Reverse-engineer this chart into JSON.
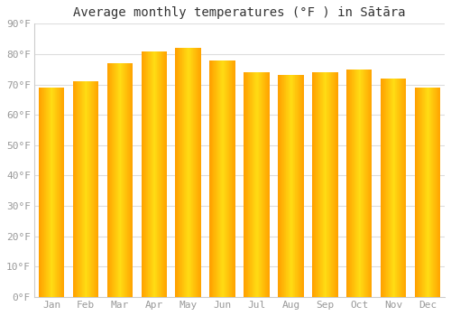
{
  "title": "Average monthly temperatures (°F ) in Sātāra",
  "months": [
    "Jan",
    "Feb",
    "Mar",
    "Apr",
    "May",
    "Jun",
    "Jul",
    "Aug",
    "Sep",
    "Oct",
    "Nov",
    "Dec"
  ],
  "values": [
    69,
    71,
    77,
    81,
    82,
    78,
    74,
    73,
    74,
    75,
    72,
    69
  ],
  "bar_color_main": "#FFA500",
  "bar_color_light": "#FFD070",
  "bar_color_edge": "#E08800",
  "background_color": "#FFFFFF",
  "ylim": [
    0,
    90
  ],
  "yticks": [
    0,
    10,
    20,
    30,
    40,
    50,
    60,
    70,
    80,
    90
  ],
  "ytick_labels": [
    "0°F",
    "10°F",
    "20°F",
    "30°F",
    "40°F",
    "50°F",
    "60°F",
    "70°F",
    "80°F",
    "90°F"
  ],
  "title_fontsize": 10,
  "tick_fontsize": 8,
  "grid_color": "#DDDDDD",
  "tick_color": "#999999",
  "spine_color": "#CCCCCC"
}
